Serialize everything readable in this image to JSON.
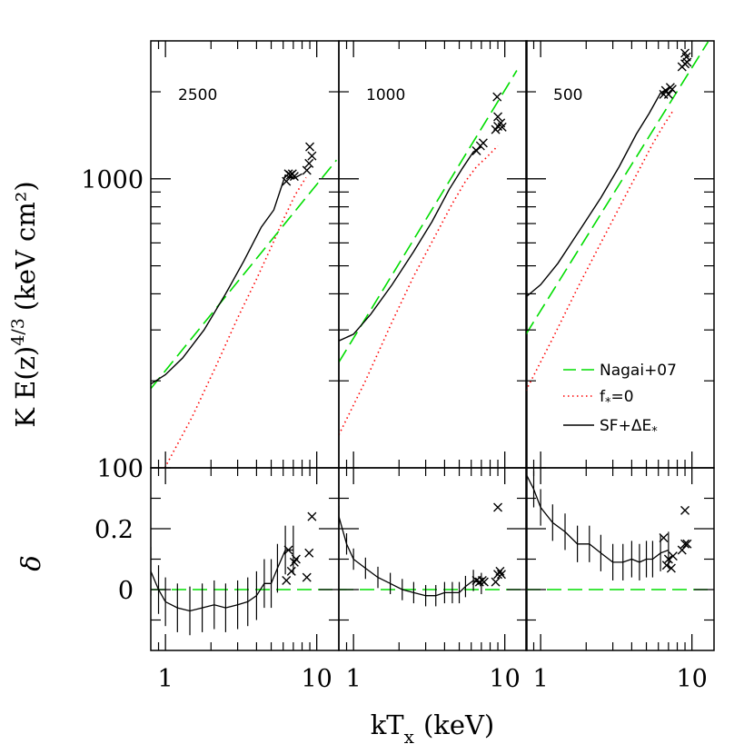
{
  "chart_data": {
    "type": "scatter",
    "xlabel_main": "kT",
    "xlabel_sub": "x",
    "xlabel_unit": "(keV)",
    "ylabel_top": "K E(z)",
    "ylabel_top_exp": "4/3",
    "ylabel_top_unit": "(keV cm²)",
    "ylabel_bottom": "δ",
    "x_scale": "log",
    "xlim": [
      0.8,
      14
    ],
    "top_y_scale": "log",
    "top_ylim": [
      100,
      3000
    ],
    "bottom_ylim": [
      -0.2,
      0.4
    ],
    "x_tick_labels": [
      {
        "value": 1,
        "label": "1"
      },
      {
        "value": 10,
        "label": "10"
      }
    ],
    "top_y_tick_labels": [
      {
        "value": 100,
        "label": "100"
      },
      {
        "value": 1000,
        "label": "1000"
      }
    ],
    "bottom_y_tick_labels": [
      {
        "value": 0,
        "label": "0"
      },
      {
        "value": 0.2,
        "label": "0.2"
      }
    ],
    "legend": {
      "placement": "bottom-right of third panel",
      "entries": [
        {
          "label": "Nagai+07",
          "style": "long-dash",
          "color": "#00dd00"
        },
        {
          "label": "f",
          "sub": "*",
          "tail": "=0",
          "style": "dotted",
          "color": "#ff0000"
        },
        {
          "label": "SF+ΔE",
          "sub": "*",
          "tail": "",
          "style": "solid",
          "color": "#000000"
        }
      ]
    },
    "panels": [
      {
        "label": "2500",
        "nagai": [
          [
            0.8,
            188
          ],
          [
            13.5,
            1160
          ]
        ],
        "f0": [
          [
            0.99,
            100
          ],
          [
            1.5,
            150
          ],
          [
            2.2,
            230
          ],
          [
            3.0,
            330
          ],
          [
            4.0,
            450
          ],
          [
            5.0,
            580
          ],
          [
            6.0,
            720
          ],
          [
            7.2,
            880
          ],
          [
            8.5,
            1010
          ]
        ],
        "sf": [
          [
            0.8,
            195
          ],
          [
            1.0,
            210
          ],
          [
            1.3,
            240
          ],
          [
            1.8,
            300
          ],
          [
            2.5,
            400
          ],
          [
            3.3,
            520
          ],
          [
            4.3,
            680
          ],
          [
            5.2,
            780
          ],
          [
            6.2,
            1030
          ],
          [
            7.0,
            1000
          ],
          [
            8.0,
            1040
          ]
        ],
        "crosses_top": [
          [
            6.3,
            980
          ],
          [
            6.5,
            1040
          ],
          [
            6.7,
            1030
          ],
          [
            6.9,
            1040
          ],
          [
            7.1,
            1020
          ],
          [
            8.6,
            1070
          ],
          [
            8.9,
            1130
          ],
          [
            9.3,
            1200
          ],
          [
            9.0,
            1290
          ]
        ],
        "delta": [
          [
            0.8,
            0.06
          ],
          [
            0.9,
            0.0
          ],
          [
            1.0,
            -0.04
          ],
          [
            1.2,
            -0.06
          ],
          [
            1.45,
            -0.07
          ],
          [
            1.75,
            -0.06
          ],
          [
            2.1,
            -0.05
          ],
          [
            2.5,
            -0.06
          ],
          [
            3.0,
            -0.05
          ],
          [
            3.5,
            -0.04
          ],
          [
            4.0,
            -0.02
          ],
          [
            4.5,
            0.02
          ],
          [
            5.0,
            0.02
          ],
          [
            5.5,
            0.07
          ],
          [
            6.2,
            0.13
          ],
          [
            7.0,
            0.13
          ]
        ],
        "delta_err": 0.08,
        "crosses_bottom": [
          [
            6.3,
            0.03
          ],
          [
            6.5,
            0.13
          ],
          [
            6.8,
            0.06
          ],
          [
            7.1,
            0.09
          ],
          [
            7.3,
            0.1
          ],
          [
            8.6,
            0.04
          ],
          [
            8.9,
            0.12
          ],
          [
            9.3,
            0.24
          ]
        ]
      },
      {
        "label": "1000",
        "nagai": [
          [
            0.8,
            232
          ],
          [
            12.0,
            2370
          ]
        ],
        "f0": [
          [
            0.8,
            130
          ],
          [
            1.2,
            200
          ],
          [
            1.8,
            320
          ],
          [
            2.5,
            460
          ],
          [
            3.5,
            640
          ],
          [
            4.5,
            820
          ],
          [
            5.5,
            980
          ],
          [
            6.5,
            1100
          ],
          [
            7.5,
            1180
          ],
          [
            9.0,
            1300
          ]
        ],
        "sf": [
          [
            0.8,
            275
          ],
          [
            1.0,
            290
          ],
          [
            1.3,
            340
          ],
          [
            1.8,
            430
          ],
          [
            2.5,
            560
          ],
          [
            3.3,
            710
          ],
          [
            4.3,
            920
          ],
          [
            5.2,
            1080
          ],
          [
            6.2,
            1240
          ],
          [
            7.0,
            1290
          ]
        ],
        "crosses_top": [
          [
            6.5,
            1250
          ],
          [
            6.9,
            1300
          ],
          [
            7.2,
            1330
          ],
          [
            8.7,
            1480
          ],
          [
            9.0,
            1520
          ],
          [
            9.4,
            1560
          ],
          [
            9.6,
            1510
          ],
          [
            9.0,
            1640
          ],
          [
            8.9,
            1920
          ]
        ],
        "delta": [
          [
            0.8,
            0.24
          ],
          [
            0.9,
            0.15
          ],
          [
            1.0,
            0.1
          ],
          [
            1.2,
            0.07
          ],
          [
            1.45,
            0.04
          ],
          [
            1.75,
            0.02
          ],
          [
            2.1,
            0.0
          ],
          [
            2.5,
            -0.01
          ],
          [
            3.0,
            -0.02
          ],
          [
            3.5,
            -0.02
          ],
          [
            4.0,
            -0.01
          ],
          [
            4.5,
            -0.01
          ],
          [
            5.0,
            -0.01
          ],
          [
            5.5,
            0.01
          ],
          [
            6.2,
            0.03
          ],
          [
            7.0,
            0.02
          ]
        ],
        "delta_err": 0.035,
        "crosses_bottom": [
          [
            6.5,
            0.03
          ],
          [
            6.8,
            0.025
          ],
          [
            7.1,
            0.03
          ],
          [
            7.3,
            0.025
          ],
          [
            8.7,
            0.025
          ],
          [
            9.0,
            0.05
          ],
          [
            9.3,
            0.06
          ],
          [
            9.5,
            0.05
          ],
          [
            9.0,
            0.27
          ]
        ]
      },
      {
        "label": "500",
        "nagai": [
          [
            0.8,
            290
          ],
          [
            12.8,
            2980
          ]
        ],
        "f0": [
          [
            0.8,
            185
          ],
          [
            1.2,
            280
          ],
          [
            1.8,
            430
          ],
          [
            2.5,
            600
          ],
          [
            3.5,
            840
          ],
          [
            4.5,
            1080
          ],
          [
            5.5,
            1320
          ],
          [
            6.5,
            1530
          ],
          [
            7.5,
            1720
          ]
        ],
        "sf": [
          [
            0.8,
            390
          ],
          [
            1.0,
            430
          ],
          [
            1.3,
            510
          ],
          [
            1.8,
            660
          ],
          [
            2.5,
            860
          ],
          [
            3.3,
            1100
          ],
          [
            4.3,
            1430
          ],
          [
            5.2,
            1680
          ],
          [
            6.2,
            1980
          ],
          [
            7.0,
            2060
          ]
        ],
        "crosses_top": [
          [
            6.5,
            1960
          ],
          [
            6.7,
            2020
          ],
          [
            7.0,
            1960
          ],
          [
            7.2,
            2070
          ],
          [
            7.4,
            2040
          ],
          [
            8.6,
            2440
          ],
          [
            9.0,
            2500
          ],
          [
            9.3,
            2530
          ],
          [
            9.2,
            2640
          ],
          [
            9.0,
            2720
          ]
        ],
        "delta": [
          [
            0.8,
            0.38
          ],
          [
            0.9,
            0.33
          ],
          [
            1.0,
            0.27
          ],
          [
            1.2,
            0.22
          ],
          [
            1.45,
            0.19
          ],
          [
            1.75,
            0.15
          ],
          [
            2.1,
            0.15
          ],
          [
            2.5,
            0.12
          ],
          [
            3.0,
            0.09
          ],
          [
            3.5,
            0.09
          ],
          [
            4.0,
            0.1
          ],
          [
            4.5,
            0.09
          ],
          [
            5.0,
            0.1
          ],
          [
            5.5,
            0.1
          ],
          [
            6.2,
            0.12
          ],
          [
            7.0,
            0.13
          ]
        ],
        "delta_err": 0.06,
        "crosses_bottom": [
          [
            6.5,
            0.17
          ],
          [
            6.8,
            0.08
          ],
          [
            7.0,
            0.1
          ],
          [
            7.3,
            0.07
          ],
          [
            7.5,
            0.11
          ],
          [
            8.6,
            0.13
          ],
          [
            9.0,
            0.15
          ],
          [
            9.3,
            0.15
          ],
          [
            9.0,
            0.26
          ]
        ]
      }
    ]
  }
}
